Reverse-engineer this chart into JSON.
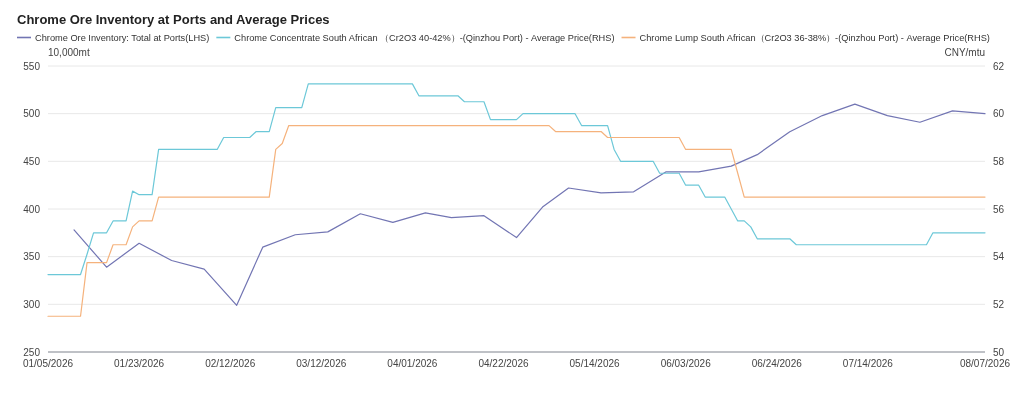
{
  "chart_data": {
    "type": "line",
    "title": "Chrome Ore Inventory at Ports and Average Prices",
    "ylabel": "10,000mt",
    "y2label": "CNY/mtu",
    "categories": [
      "01/05/2026",
      null,
      null,
      null,
      null,
      null,
      null,
      null,
      null,
      null,
      null,
      null,
      null,
      null,
      "01/23/2026",
      null,
      null,
      null,
      null,
      null,
      null,
      null,
      null,
      null,
      null,
      null,
      null,
      null,
      "02/12/2026",
      null,
      null,
      null,
      null,
      null,
      null,
      null,
      null,
      null,
      null,
      null,
      null,
      null,
      "03/12/2026",
      null,
      null,
      null,
      null,
      null,
      null,
      null,
      null,
      null,
      null,
      null,
      null,
      null,
      "04/01/2026",
      null,
      null,
      null,
      null,
      null,
      null,
      null,
      null,
      null,
      null,
      null,
      null,
      null,
      "04/22/2026",
      null,
      null,
      null,
      null,
      null,
      null,
      null,
      null,
      null,
      null,
      null,
      null,
      null,
      "05/14/2026",
      null,
      null,
      null,
      null,
      null,
      null,
      null,
      null,
      null,
      null,
      null,
      null,
      null,
      "06/03/2026",
      null,
      null,
      null,
      null,
      null,
      null,
      null,
      null,
      null,
      null,
      null,
      null,
      null,
      "06/24/2026",
      null,
      null,
      null,
      null,
      null,
      null,
      null,
      null,
      null,
      null,
      null,
      null,
      null,
      "07/14/2026",
      null,
      null,
      null,
      null,
      null,
      null,
      null,
      null,
      null,
      null,
      null,
      null,
      null,
      null,
      null,
      null,
      null,
      "08/07/2026"
    ],
    "series": [
      {
        "name": "Chrome Ore Inventory: Total at Ports(LHS)",
        "color": "#7275b3",
        "values": [
          null,
          null,
          null,
          null,
          378,
          null,
          null,
          null,
          null,
          339,
          null,
          null,
          null,
          null,
          364,
          null,
          null,
          null,
          null,
          346,
          null,
          null,
          null,
          null,
          337,
          null,
          null,
          null,
          null,
          299,
          null,
          null,
          null,
          360,
          null,
          null,
          null,
          null,
          373,
          null,
          null,
          null,
          null,
          376,
          null,
          null,
          null,
          null,
          395,
          null,
          null,
          null,
          null,
          386,
          null,
          null,
          null,
          null,
          396,
          null,
          null,
          null,
          391,
          null,
          null,
          null,
          null,
          393,
          null,
          null,
          null,
          null,
          370,
          null,
          null,
          null,
          402,
          null,
          null,
          null,
          422,
          null,
          null,
          null,
          null,
          417,
          null,
          null,
          null,
          null,
          418,
          null,
          null,
          null,
          null,
          439,
          null,
          null,
          null,
          null,
          439,
          null,
          null,
          null,
          null,
          445,
          null,
          null,
          null,
          457,
          null,
          null,
          null,
          null,
          481,
          null,
          null,
          null,
          null,
          498,
          null,
          null,
          null,
          null,
          510,
          null,
          null,
          null,
          null,
          498,
          null,
          null,
          null,
          null,
          491,
          null,
          null,
          null,
          null,
          503,
          null,
          null,
          null,
          null,
          500
        ]
      },
      {
        "name": "Chrome Concentrate South African （Cr2O3 40-42%）-(Qinzhou Port) - Average Price(RHS)",
        "color": "#6cc8d8",
        "axis": "y2",
        "values": [
          53.25,
          53.25,
          53.25,
          53.25,
          53.25,
          53.25,
          54.1,
          55,
          55,
          55,
          55.5,
          55.5,
          55.5,
          56.75,
          56.6,
          56.6,
          56.6,
          58.5,
          58.5,
          58.5,
          58.5,
          58.5,
          58.5,
          58.5,
          58.5,
          58.5,
          58.5,
          59,
          59,
          59,
          59,
          59,
          59.25,
          59.25,
          59.25,
          60.25,
          60.25,
          60.25,
          60.25,
          60.25,
          61.25,
          61.25,
          61.25,
          61.25,
          61.25,
          61.25,
          61.25,
          61.25,
          61.25,
          61.25,
          61.25,
          61.25,
          61.25,
          61.25,
          61.25,
          61.25,
          61.25,
          60.75,
          60.75,
          60.75,
          60.75,
          60.75,
          60.75,
          60.75,
          60.5,
          60.5,
          60.5,
          60.5,
          59.75,
          59.75,
          59.75,
          59.75,
          59.75,
          60,
          60,
          60,
          60,
          60,
          60,
          60,
          60,
          60,
          59.5,
          59.5,
          59.5,
          59.5,
          59.5,
          58.5,
          58,
          58,
          58,
          58,
          58,
          58,
          57.5,
          57.5,
          57.5,
          57.5,
          57,
          57,
          57,
          56.5,
          56.5,
          56.5,
          56.5,
          56,
          55.5,
          55.5,
          55.25,
          54.75,
          54.75,
          54.75,
          54.75,
          54.75,
          54.75,
          54.5,
          54.5,
          54.5,
          54.5,
          54.5,
          54.5,
          54.5,
          54.5,
          54.5,
          54.5,
          54.5,
          54.5,
          54.5,
          54.5,
          54.5,
          54.5,
          54.5,
          54.5,
          54.5,
          54.5,
          54.5,
          55,
          55,
          55,
          55,
          55,
          55,
          55,
          55,
          55
        ]
      },
      {
        "name": "Chrome Lump South African（Cr2O3 36-38%）-(Qinzhou Port) - Average Price(RHS)",
        "color": "#f5b27c",
        "axis": "y2",
        "values": [
          51.5,
          51.5,
          51.5,
          51.5,
          51.5,
          51.5,
          53.75,
          53.75,
          53.75,
          53.75,
          54.5,
          54.5,
          54.5,
          55.25,
          55.5,
          55.5,
          55.5,
          56.5,
          56.5,
          56.5,
          56.5,
          56.5,
          56.5,
          56.5,
          56.5,
          56.5,
          56.5,
          56.5,
          56.5,
          56.5,
          56.5,
          56.5,
          56.5,
          56.5,
          56.5,
          58.5,
          58.75,
          59.5,
          59.5,
          59.5,
          59.5,
          59.5,
          59.5,
          59.5,
          59.5,
          59.5,
          59.5,
          59.5,
          59.5,
          59.5,
          59.5,
          59.5,
          59.5,
          59.5,
          59.5,
          59.5,
          59.5,
          59.5,
          59.5,
          59.5,
          59.5,
          59.5,
          59.5,
          59.5,
          59.5,
          59.5,
          59.5,
          59.5,
          59.5,
          59.5,
          59.5,
          59.5,
          59.5,
          59.5,
          59.5,
          59.5,
          59.5,
          59.5,
          59.25,
          59.25,
          59.25,
          59.25,
          59.25,
          59.25,
          59.25,
          59.25,
          59,
          59,
          59,
          59,
          59,
          59,
          59,
          59,
          59,
          59,
          59,
          59,
          58.5,
          58.5,
          58.5,
          58.5,
          58.5,
          58.5,
          58.5,
          58.5,
          57.5,
          56.5,
          56.5,
          56.5,
          56.5,
          56.5,
          56.5,
          56.5,
          56.5,
          56.5,
          56.5,
          56.5,
          56.5,
          56.5,
          56.5,
          56.5,
          56.5,
          56.5,
          56.5,
          56.5,
          56.5,
          56.5,
          56.5,
          56.5,
          56.5,
          56.5,
          56.5,
          56.5,
          56.5,
          56.5,
          56.5,
          56.5,
          56.5,
          56.5,
          56.5,
          56.5,
          56.5,
          56.5,
          56.5
        ]
      }
    ],
    "ylim": [
      250,
      550
    ],
    "yticks": [
      250,
      300,
      350,
      400,
      450,
      500,
      550
    ],
    "y2lim": [
      50,
      62
    ],
    "y2ticks": [
      50,
      52,
      54,
      56,
      58,
      60,
      62
    ],
    "grid": "y",
    "legend": "top",
    "marker": "none",
    "line_style": "solid"
  }
}
